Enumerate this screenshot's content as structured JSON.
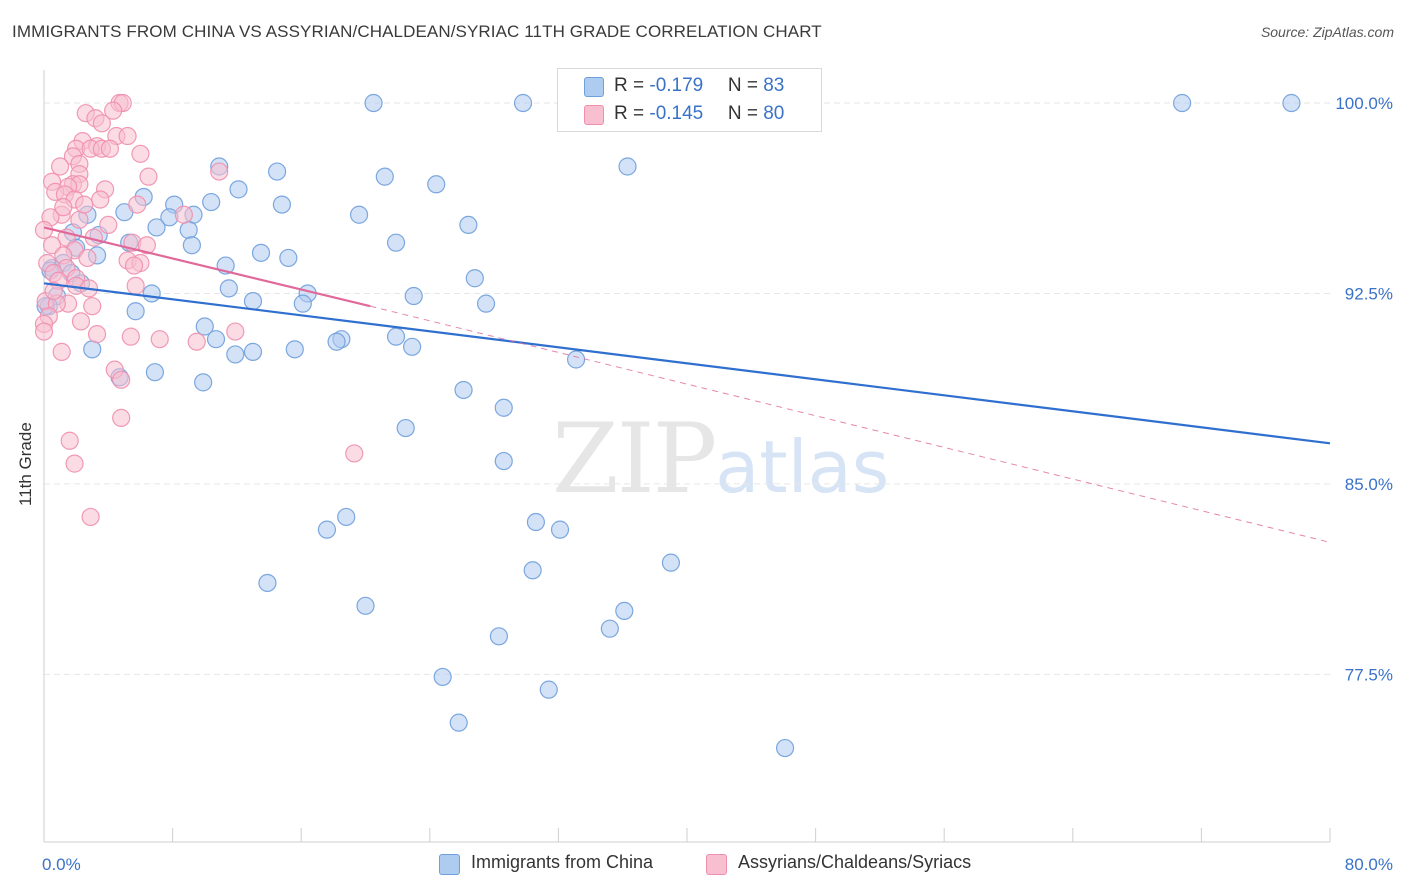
{
  "title": "IMMIGRANTS FROM CHINA VS ASSYRIAN/CHALDEAN/SYRIAC 11TH GRADE CORRELATION CHART",
  "source": "Source: ZipAtlas.com",
  "watermark": {
    "zip": "ZIP",
    "atlas": "atlas"
  },
  "legend_top": [
    {
      "r_label": "R = ",
      "r_value": "-0.179",
      "n_label": "N = ",
      "n_value": "83"
    },
    {
      "r_label": "R = ",
      "r_value": "-0.145",
      "n_label": "N = ",
      "n_value": "80"
    }
  ],
  "colors": {
    "china_fill": "#aecbf0",
    "china_stroke": "#6f9fdc",
    "china_line": "#2f6fcf",
    "assyrian_fill": "#f8bfd0",
    "assyrian_stroke": "#ef8fae",
    "assyrian_line": "#e0699a",
    "tick_label": "#3a72c8",
    "grid": "#e6e6e6"
  },
  "chart_data": {
    "type": "scatter",
    "title": "IMMIGRANTS FROM CHINA VS ASSYRIAN/CHALDEAN/SYRIAC 11TH GRADE CORRELATION CHART",
    "xlabel": "",
    "ylabel": "11th Grade",
    "xlim": [
      0,
      80
    ],
    "ylim": [
      70.9,
      101.3
    ],
    "x_tick_labels": [
      "0.0%",
      "80.0%"
    ],
    "y_ticks": [
      77.5,
      85.0,
      92.5,
      100.0
    ],
    "y_tick_labels": [
      "77.5%",
      "85.0%",
      "92.5%",
      "100.0%"
    ],
    "grid": true,
    "legend_placement": "bottom",
    "series": [
      {
        "name": "Immigrants from China",
        "r": -0.179,
        "n": 83,
        "trend": {
          "x": [
            0,
            80
          ],
          "y": [
            92.9,
            86.6
          ],
          "style": "solid"
        },
        "points": [
          [
            20.5,
            100
          ],
          [
            29.8,
            100
          ],
          [
            32.7,
            100
          ],
          [
            70.8,
            100
          ],
          [
            77.6,
            100
          ],
          [
            36.3,
            97.5
          ],
          [
            10.9,
            97.5
          ],
          [
            14.5,
            97.3
          ],
          [
            21.2,
            97.1
          ],
          [
            24.4,
            96.8
          ],
          [
            12.1,
            96.6
          ],
          [
            6.2,
            96.3
          ],
          [
            8.1,
            96
          ],
          [
            10.4,
            96.1
          ],
          [
            14.8,
            96
          ],
          [
            2.7,
            95.6
          ],
          [
            5.0,
            95.7
          ],
          [
            7.8,
            95.5
          ],
          [
            9.3,
            95.6
          ],
          [
            19.6,
            95.6
          ],
          [
            26.4,
            95.2
          ],
          [
            1.8,
            94.9
          ],
          [
            3.4,
            94.8
          ],
          [
            5.3,
            94.5
          ],
          [
            7.0,
            95.1
          ],
          [
            9.0,
            95
          ],
          [
            21.9,
            94.5
          ],
          [
            9.2,
            94.4
          ],
          [
            2.0,
            94.3
          ],
          [
            3.3,
            94
          ],
          [
            13.5,
            94.1
          ],
          [
            15.2,
            93.9
          ],
          [
            1.2,
            93.7
          ],
          [
            0.5,
            93.5
          ],
          [
            1.7,
            93.3
          ],
          [
            26.8,
            93.1
          ],
          [
            11.5,
            92.7
          ],
          [
            16.4,
            92.5
          ],
          [
            0.8,
            92.4
          ],
          [
            23.0,
            92.4
          ],
          [
            13.0,
            92.2
          ],
          [
            16.1,
            92.1
          ],
          [
            27.5,
            92.1
          ],
          [
            0.3,
            92.0
          ],
          [
            5.7,
            91.8
          ],
          [
            10.0,
            91.2
          ],
          [
            10.7,
            90.7
          ],
          [
            18.5,
            90.7
          ],
          [
            18.2,
            90.6
          ],
          [
            21.9,
            90.8
          ],
          [
            22.9,
            90.4
          ],
          [
            13.0,
            90.2
          ],
          [
            11.9,
            90.1
          ],
          [
            15.6,
            90.3
          ],
          [
            33.1,
            89.9
          ],
          [
            6.9,
            89.4
          ],
          [
            4.7,
            89.2
          ],
          [
            9.9,
            89.0
          ],
          [
            26.1,
            88.7
          ],
          [
            28.6,
            88.0
          ],
          [
            22.5,
            87.2
          ],
          [
            28.6,
            85.9
          ],
          [
            18.8,
            83.7
          ],
          [
            17.6,
            83.2
          ],
          [
            30.6,
            83.5
          ],
          [
            32.1,
            83.2
          ],
          [
            39.0,
            81.9
          ],
          [
            30.4,
            81.6
          ],
          [
            13.9,
            81.1
          ],
          [
            20.0,
            80.2
          ],
          [
            36.1,
            80.0
          ],
          [
            35.2,
            79.3
          ],
          [
            28.3,
            79.0
          ],
          [
            24.8,
            77.4
          ],
          [
            31.4,
            76.9
          ],
          [
            25.8,
            75.6
          ],
          [
            46.1,
            74.6
          ],
          [
            0.1,
            92.0
          ],
          [
            0.4,
            93.4
          ],
          [
            2.3,
            92.9
          ],
          [
            6.7,
            92.5
          ],
          [
            11.3,
            93.6
          ],
          [
            3.0,
            90.3
          ]
        ]
      },
      {
        "name": "Assyrians/Chaldeans/Syriacs",
        "r": -0.145,
        "n": 80,
        "trend": {
          "x": [
            0,
            20.3
          ],
          "y": [
            95.1,
            92.0
          ],
          "style": "solid",
          "extension": {
            "x": [
              20.3,
              80
            ],
            "y": [
              92.0,
              82.7
            ],
            "style": "dashed"
          }
        },
        "points": [
          [
            4.7,
            100
          ],
          [
            4.9,
            100
          ],
          [
            4.3,
            99.7
          ],
          [
            2.6,
            99.6
          ],
          [
            3.2,
            99.4
          ],
          [
            3.6,
            99.2
          ],
          [
            4.5,
            98.7
          ],
          [
            5.2,
            98.7
          ],
          [
            2.4,
            98.5
          ],
          [
            3.3,
            98.3
          ],
          [
            2.0,
            98.2
          ],
          [
            2.9,
            98.2
          ],
          [
            3.6,
            98.2
          ],
          [
            6.0,
            98.0
          ],
          [
            1.8,
            97.9
          ],
          [
            1.0,
            97.5
          ],
          [
            2.2,
            97.6
          ],
          [
            10.9,
            97.3
          ],
          [
            6.5,
            97.1
          ],
          [
            2.2,
            97.2
          ],
          [
            0.5,
            96.9
          ],
          [
            1.8,
            96.8
          ],
          [
            2.2,
            96.8
          ],
          [
            3.8,
            96.6
          ],
          [
            1.5,
            96.7
          ],
          [
            0.7,
            96.5
          ],
          [
            1.3,
            96.4
          ],
          [
            1.9,
            96.2
          ],
          [
            3.5,
            96.2
          ],
          [
            5.8,
            96.0
          ],
          [
            1.1,
            95.6
          ],
          [
            2.2,
            95.4
          ],
          [
            0.4,
            95.5
          ],
          [
            4.0,
            95.2
          ],
          [
            8.7,
            95.6
          ],
          [
            0.0,
            95.0
          ],
          [
            1.4,
            94.7
          ],
          [
            5.5,
            94.5
          ],
          [
            0.5,
            94.4
          ],
          [
            1.9,
            94.2
          ],
          [
            1.2,
            94.0
          ],
          [
            2.7,
            93.9
          ],
          [
            5.2,
            93.8
          ],
          [
            6.0,
            93.7
          ],
          [
            0.2,
            93.7
          ],
          [
            1.4,
            93.5
          ],
          [
            0.6,
            93.3
          ],
          [
            2.0,
            93.1
          ],
          [
            5.7,
            92.8
          ],
          [
            2.0,
            92.8
          ],
          [
            2.8,
            92.7
          ],
          [
            1.5,
            92.1
          ],
          [
            0.1,
            92.2
          ],
          [
            0.8,
            92.1
          ],
          [
            0.3,
            91.6
          ],
          [
            2.3,
            91.4
          ],
          [
            0.0,
            91.3
          ],
          [
            3.3,
            90.9
          ],
          [
            5.4,
            90.8
          ],
          [
            7.2,
            90.7
          ],
          [
            11.9,
            91.0
          ],
          [
            9.5,
            90.6
          ],
          [
            1.1,
            90.2
          ],
          [
            4.4,
            89.5
          ],
          [
            4.8,
            89.1
          ],
          [
            4.8,
            87.6
          ],
          [
            1.6,
            86.7
          ],
          [
            1.9,
            85.8
          ],
          [
            19.3,
            86.2
          ],
          [
            2.9,
            83.7
          ],
          [
            5.6,
            93.6
          ],
          [
            0.0,
            91.0
          ],
          [
            1.2,
            95.9
          ],
          [
            3.1,
            94.7
          ],
          [
            0.9,
            93.0
          ],
          [
            2.5,
            96.0
          ],
          [
            6.4,
            94.4
          ],
          [
            4.1,
            98.2
          ],
          [
            0.6,
            92.6
          ],
          [
            3.0,
            92.0
          ]
        ]
      }
    ]
  }
}
